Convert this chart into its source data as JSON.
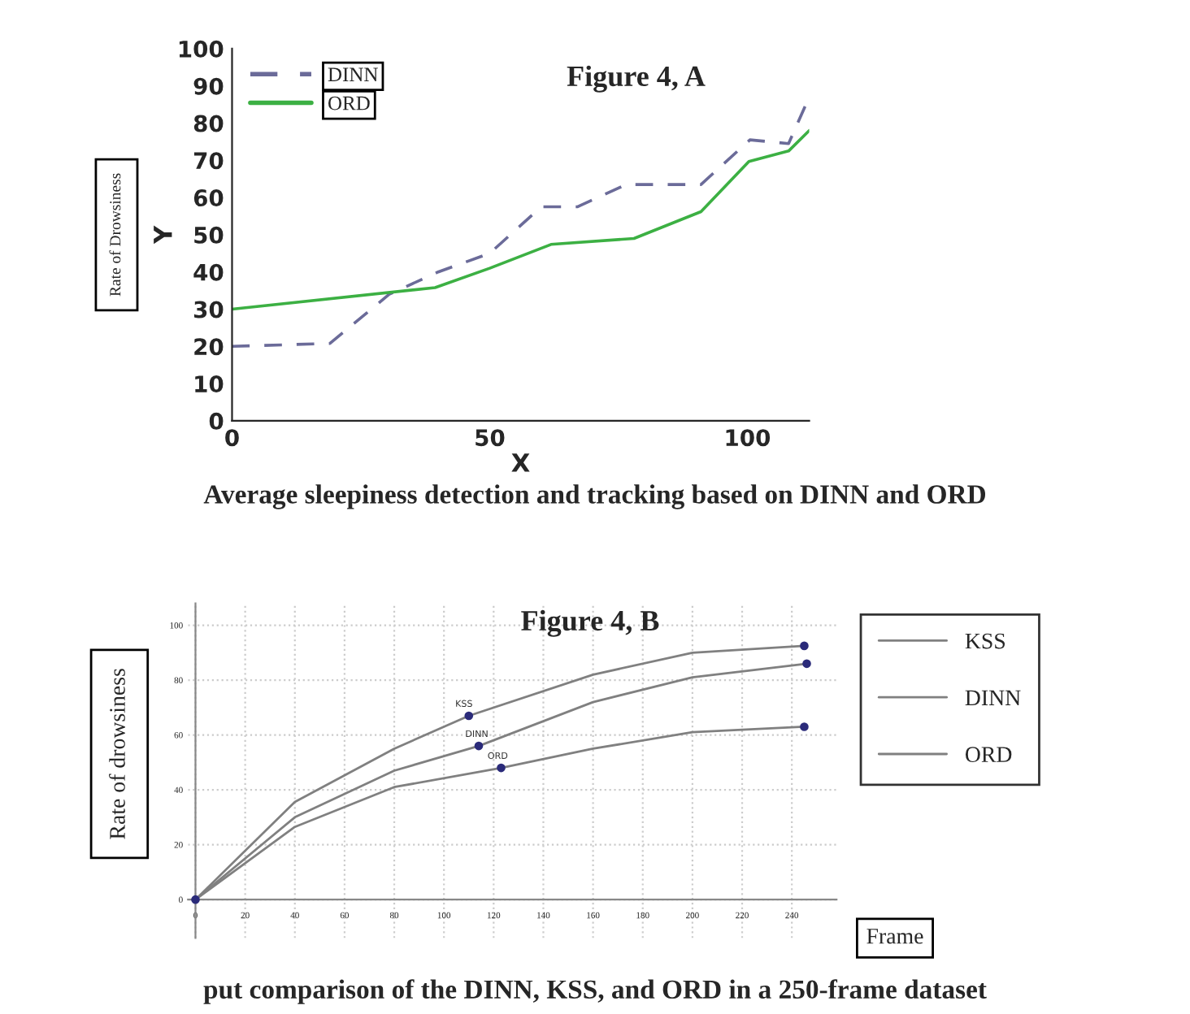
{
  "chart_data": [
    {
      "type": "line",
      "title": "Figure 4, A",
      "xlabel": "X",
      "ylabel": "Y",
      "annotations": [
        "Rate of Drowsiness",
        "Average sleepiness detection and tracking based on DINN and ORD"
      ],
      "xlim": [
        0,
        112
      ],
      "xticks": [
        0,
        50,
        100
      ],
      "ylim": [
        0,
        100
      ],
      "yticks": [
        0,
        10,
        20,
        30,
        40,
        50,
        60,
        70,
        80,
        90,
        100
      ],
      "grid": false,
      "legend": "top left",
      "series": [
        {
          "name": "DINN",
          "color": "#6b6b99",
          "line_style": "dashed",
          "x": [
            0,
            19,
            30.5,
            40,
            50,
            60,
            67,
            76.5,
            91,
            100.5,
            108,
            112
          ],
          "values": [
            20,
            20.8,
            34,
            40,
            45,
            57.5,
            57.5,
            63.5,
            63.5,
            75.5,
            74.5,
            87
          ]
        },
        {
          "name": "ORD",
          "color": "#3cb043",
          "line_style": "solid",
          "x": [
            0,
            39.4,
            50,
            61.9,
            78,
            91,
            100.3,
            108,
            112
          ],
          "values": [
            30,
            35.8,
            41,
            47.4,
            49,
            56.2,
            69.7,
            72.5,
            78
          ]
        }
      ]
    },
    {
      "type": "line",
      "title": "Figure 4, B",
      "xlabel": "Frame",
      "ylabel": "Rate of drowsiness",
      "annotations": [
        {
          "text": "KSS",
          "x": 110,
          "y": 67
        },
        {
          "text": "DINN",
          "x": 114,
          "y": 56
        },
        {
          "text": "ORD",
          "x": 123,
          "y": 48
        },
        "put comparison of the DINN, KSS, and ORD in a 250-frame dataset"
      ],
      "xlim": [
        -3,
        258
      ],
      "xticks": [
        0,
        20,
        40,
        60,
        80,
        100,
        120,
        140,
        160,
        180,
        200,
        220,
        240
      ],
      "ylim": [
        -14,
        108
      ],
      "yticks": [
        0,
        20,
        40,
        60,
        80,
        100
      ],
      "grid": true,
      "legend": "right",
      "series": [
        {
          "name": "KSS",
          "color": "#808080",
          "line_style": "solid",
          "x": [
            0,
            40,
            80,
            110,
            160,
            200,
            245
          ],
          "values": [
            0,
            35.6,
            55,
            67,
            82,
            90,
            92.5
          ]
        },
        {
          "name": "DINN",
          "color": "#808080",
          "line_style": "solid",
          "x": [
            0,
            40,
            80,
            114,
            160,
            200,
            246
          ],
          "values": [
            0,
            30,
            47,
            56,
            72,
            81,
            86
          ]
        },
        {
          "name": "ORD",
          "color": "#808080",
          "line_style": "solid",
          "x": [
            0,
            40,
            80,
            123,
            160,
            200,
            245
          ],
          "values": [
            0,
            26.5,
            41,
            48,
            55,
            61,
            63
          ]
        },
        {
          "type": "scatter",
          "color": "#2b2b7a",
          "marker": "circle",
          "x": [
            0,
            110,
            114,
            123,
            245,
            246,
            245
          ],
          "values": [
            0,
            67,
            56,
            48,
            92.5,
            86,
            63
          ]
        }
      ]
    }
  ]
}
